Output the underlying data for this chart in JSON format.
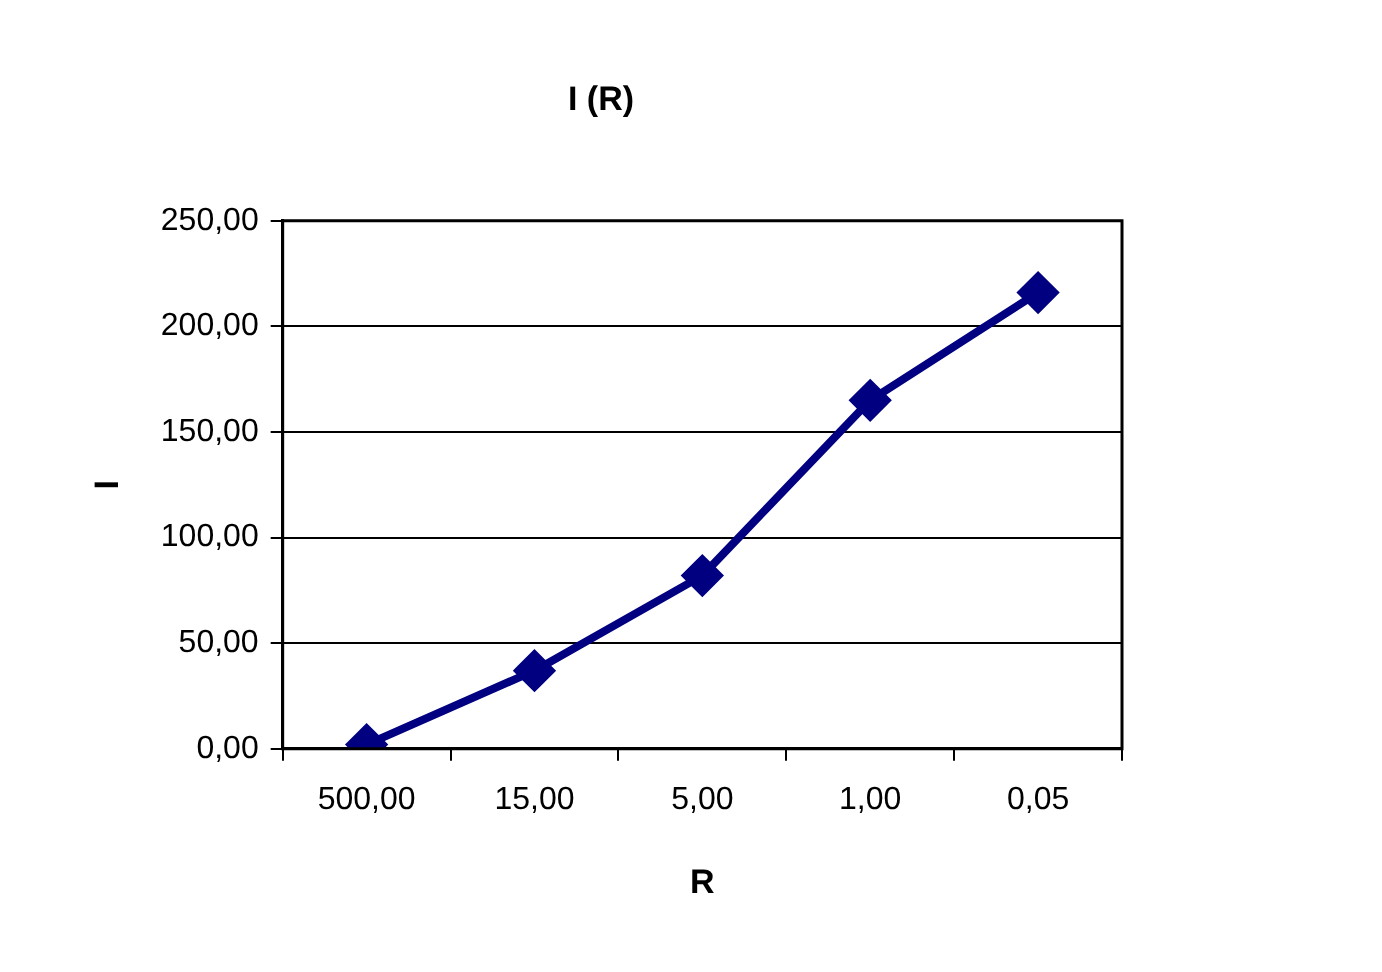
{
  "chart_data": {
    "type": "line",
    "title": "I (R)",
    "xlabel": "R",
    "ylabel": "I",
    "categories": [
      "500,00",
      "15,00",
      "5,00",
      "1,00",
      "0,05"
    ],
    "series": [
      {
        "color": "#000080",
        "values": [
          2,
          37,
          82,
          165,
          216
        ]
      }
    ],
    "ylim": [
      0,
      250
    ],
    "yticks": [
      {
        "value": 0,
        "label": "0,00"
      },
      {
        "value": 50,
        "label": "50,00"
      },
      {
        "value": 100,
        "label": "100,00"
      },
      {
        "value": 150,
        "label": "150,00"
      },
      {
        "value": 200,
        "label": "200,00"
      },
      {
        "value": 250,
        "label": "250,00"
      }
    ],
    "grid": "y",
    "legend": false,
    "marker": "diamond",
    "line_style": "solid"
  }
}
